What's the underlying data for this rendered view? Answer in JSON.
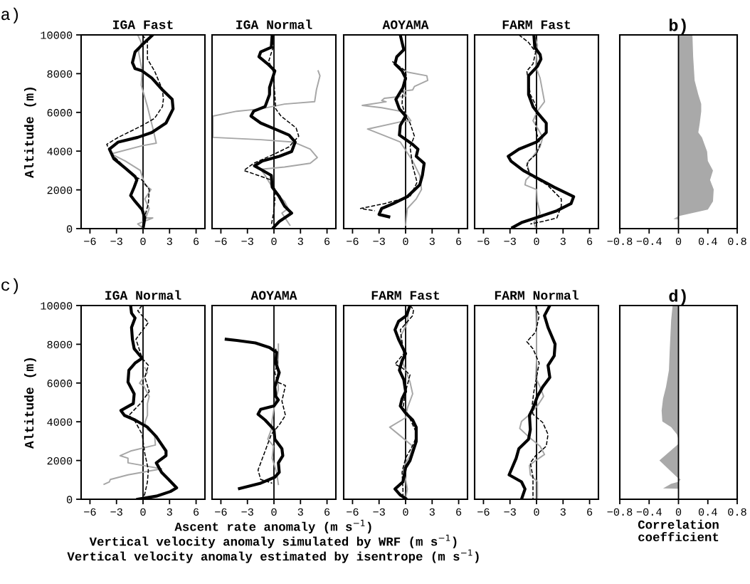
{
  "chart_data": [
    {
      "type": "line",
      "title": "IGA Fast",
      "ylabel": "Altitude (m)",
      "annotations": [
        "a)"
      ],
      "xlim": [
        -7,
        7
      ],
      "xticks": [
        -6,
        -3,
        0,
        3,
        6
      ],
      "ylim": [
        0,
        10000
      ],
      "yticks": [
        0,
        2000,
        4000,
        6000,
        8000,
        10000
      ],
      "ref_lines": [
        {
          "axis": "x",
          "value": 0,
          "color": "#000000"
        }
      ],
      "series": [
        {
          "color": "#a6a6a6",
          "line_style": "solid",
          "x": [
            -0.6,
            -0.2,
            -0.5,
            -0.1,
            -0.2,
            0.5,
            1.1,
            1.5,
            -0.1,
            -3.6,
            -2.0,
            -0.3,
            0.2,
            0.9,
            0.2,
            0.7,
            0.3,
            1.1,
            -0.6,
            -0.1
          ],
          "values": [
            10000,
            9610,
            9120,
            8140,
            7410,
            6300,
            5200,
            4410,
            4280,
            3860,
            3490,
            3000,
            2260,
            2020,
            1530,
            1040,
            550,
            550,
            240,
            60
          ]
        },
        {
          "color": "#000000",
          "line_style": "dashed",
          "x": [
            -0.1,
            0.5,
            0.5,
            1.3,
            2.2,
            2.3,
            2.2,
            1.3,
            -0.1,
            -2.8,
            -4.1,
            -3.6,
            -2.2,
            -1.0,
            -0.1,
            0.7,
            0.6,
            0.3,
            0.05
          ],
          "values": [
            10000,
            9670,
            8750,
            8140,
            7160,
            6670,
            6300,
            5690,
            5320,
            4710,
            4350,
            3860,
            3240,
            2690,
            2510,
            2020,
            1290,
            800,
            60
          ]
        },
        {
          "color": "#000000",
          "line_style": "solid",
          "x": [
            1.1,
            -0.1,
            -0.9,
            -1.2,
            -0.9,
            -0.1,
            1.0,
            2.2,
            3.3,
            3.4,
            2.6,
            1.0,
            -0.6,
            -2.8,
            -3.8,
            -3.3,
            -2.0,
            -0.9,
            -0.7,
            -1.0,
            -1.4,
            -0.9,
            -0.1,
            0.2,
            0.05
          ],
          "values": [
            10000,
            9490,
            9120,
            8570,
            8260,
            8140,
            7770,
            7160,
            6670,
            6180,
            5450,
            4960,
            4710,
            4470,
            4100,
            3610,
            3120,
            2690,
            2510,
            2140,
            1710,
            1410,
            980,
            550,
            120
          ]
        }
      ]
    },
    {
      "type": "line",
      "title": "IGA Normal",
      "tick_labels": "x",
      "xlim": [
        -7,
        7
      ],
      "xticks": [
        -6,
        -3,
        0,
        3,
        6
      ],
      "ylim": [
        0,
        10000
      ],
      "yticks": [
        0,
        2000,
        4000,
        6000,
        8000,
        10000
      ],
      "ref_lines": [
        {
          "axis": "x",
          "value": 0,
          "color": "#000000"
        }
      ],
      "series": [
        {
          "color": "#a6a6a6",
          "line_style": "solid",
          "x": [
            5.0,
            5.2,
            4.8,
            4.6,
            1.2,
            -1.5,
            -4.2,
            -6.9,
            -6.9,
            -1.5,
            2.2,
            4.1,
            4.9,
            4.1,
            1.2,
            -1.5,
            -1.0,
            -0.2,
            0.3,
            1.2,
            1.6,
            0.9,
            1.8
          ],
          "values": [
            8140,
            7890,
            7160,
            6550,
            6430,
            6180,
            6060,
            5810,
            4710,
            4590,
            4470,
            4100,
            3670,
            3370,
            3180,
            3060,
            2750,
            2140,
            1770,
            1410,
            1040,
            800,
            180
          ]
        },
        {
          "color": "#000000",
          "line_style": "dashed",
          "x": [
            -0.2,
            -0.1,
            -0.6,
            -0.1,
            0.1,
            0.2,
            0.8,
            2.5,
            2.8,
            1.7,
            0.1,
            -2.3,
            -3.4,
            -1.8,
            -0.3,
            0.1,
            0.1,
            -0.05,
            -0.3
          ],
          "values": [
            10000,
            9360,
            8630,
            8140,
            6920,
            6180,
            5810,
            5200,
            4770,
            4220,
            3860,
            3370,
            3000,
            2750,
            2510,
            2020,
            1410,
            800,
            180
          ]
        },
        {
          "color": "#000000",
          "line_style": "solid",
          "x": [
            -0.2,
            -0.3,
            -1.5,
            -1.7,
            -0.7,
            0.1,
            -0.5,
            -0.5,
            -1.0,
            -2.3,
            -2.6,
            -1.5,
            0.1,
            1.7,
            2.4,
            2.0,
            0.6,
            -1.3,
            -2.2,
            -1.5,
            -0.3,
            -0.2,
            0.6,
            1.2,
            2.0,
            0.6,
            -0.05
          ],
          "values": [
            10000,
            9360,
            9120,
            8870,
            8500,
            8140,
            7280,
            6920,
            6300,
            6060,
            5810,
            5450,
            5140,
            4830,
            4470,
            3980,
            3730,
            3490,
            3240,
            3060,
            2750,
            2140,
            1650,
            1160,
            800,
            370,
            60
          ]
        }
      ]
    },
    {
      "type": "line",
      "title": "AOYAMA",
      "tick_labels": "x",
      "xlim": [
        -7,
        7
      ],
      "xticks": [
        -6,
        -3,
        0,
        3,
        6
      ],
      "ylim": [
        0,
        10000
      ],
      "yticks": [
        0,
        2000,
        4000,
        6000,
        8000,
        10000
      ],
      "ref_lines": [
        {
          "axis": "x",
          "value": 0,
          "color": "#000000"
        }
      ],
      "series": [
        {
          "color": "#a6a6a6",
          "line_style": "solid",
          "x": [
            0,
            0.2,
            2.4,
            2.5,
            1.0,
            0.8,
            -0.3,
            0,
            -2.4,
            -2.7,
            -2.2,
            -4.9,
            -2.7,
            -0.6,
            0,
            0.6,
            -0.6,
            -4.3,
            -1.9,
            -0.6,
            0.8,
            1.6,
            1.8,
            1.2,
            0.2,
            0
          ],
          "values": [
            8140,
            8080,
            7890,
            7650,
            7340,
            7160,
            7100,
            6850,
            6730,
            6610,
            6550,
            6360,
            6240,
            6060,
            5940,
            5570,
            5510,
            5140,
            4710,
            4470,
            3490,
            2750,
            2020,
            1530,
            1040,
            180
          ]
        },
        {
          "color": "#000000",
          "line_style": "dashed",
          "x": [
            -1.5,
            0,
            0.1,
            -0.3,
            -0.4,
            0,
            0.5,
            1.0,
            0.5,
            0.8,
            1.3,
            0.5,
            -2.4,
            -5.1,
            -3.5
          ],
          "values": [
            8630,
            8140,
            7770,
            7160,
            6430,
            5810,
            5450,
            4770,
            4220,
            3240,
            2390,
            1650,
            1290,
            1040,
            920
          ]
        },
        {
          "color": "#000000",
          "line_style": "solid",
          "x": [
            -0.6,
            -0.4,
            -0.2,
            -1.0,
            -1.2,
            -0.4,
            0,
            -0.3,
            -1.1,
            -0.7,
            0,
            -0.6,
            -0.7,
            0.8,
            1.4,
            1.2,
            2.1,
            1.9,
            1.6,
            0.2,
            -1.4,
            -2.7,
            -3.0,
            -1.9
          ],
          "values": [
            10000,
            9610,
            9240,
            8870,
            8500,
            8140,
            7770,
            7280,
            6670,
            6180,
            5810,
            5320,
            4830,
            4350,
            4100,
            3730,
            3370,
            2750,
            2260,
            1650,
            1290,
            1040,
            730,
            610
          ]
        }
      ]
    },
    {
      "type": "line",
      "title": "FARM Fast",
      "tick_labels": "x",
      "xlim": [
        -7,
        7
      ],
      "xticks": [
        -6,
        -3,
        0,
        3,
        6
      ],
      "ylim": [
        0,
        10000
      ],
      "yticks": [
        0,
        2000,
        4000,
        6000,
        8000,
        10000
      ],
      "ref_lines": [
        {
          "axis": "x",
          "value": 0,
          "color": "#000000"
        }
      ],
      "series": [
        {
          "color": "#a6a6a6",
          "line_style": "solid",
          "x": [
            -0.3,
            0.1,
            -0.1,
            0.4,
            0.9,
            0.1,
            -0.4,
            0.1,
            0.7,
            0.4,
            -0.4,
            -1.1,
            -0.7,
            -1.2,
            -1.3,
            0,
            0.1,
            0.4,
            -0.3,
            -0.1
          ],
          "values": [
            10000,
            9490,
            8380,
            7770,
            6550,
            6060,
            5570,
            5200,
            4710,
            4220,
            3730,
            3370,
            2750,
            2510,
            2260,
            2020,
            1410,
            800,
            310,
            60
          ]
        },
        {
          "color": "#000000",
          "line_style": "dashed",
          "x": [
            -2.0,
            -0.9,
            -0.1,
            -0.4,
            -1.1,
            -0.9,
            -0.7,
            0,
            -0.1,
            0.4,
            0,
            -0.9,
            -1.1,
            -0.7,
            1.2,
            2.8,
            2.8,
            2.3,
            0.7,
            -0.7
          ],
          "values": [
            10000,
            9610,
            9120,
            8500,
            8140,
            7530,
            6920,
            6300,
            5080,
            4350,
            3860,
            3490,
            3240,
            2750,
            2260,
            1530,
            1160,
            550,
            370,
            240
          ]
        },
        {
          "color": "#000000",
          "line_style": "solid",
          "x": [
            -0.3,
            -0.2,
            0.4,
            0.5,
            0.1,
            -0.9,
            -0.9,
            -0.4,
            0.1,
            1.1,
            1.1,
            0,
            -2.0,
            -3.2,
            -2.9,
            -1.5,
            0,
            2.0,
            4.2,
            3.9,
            2.3,
            -0.1,
            -1.7,
            -2.7
          ],
          "values": [
            10000,
            9360,
            8990,
            8750,
            8380,
            7890,
            6920,
            6300,
            5990,
            5450,
            4960,
            4470,
            4100,
            3730,
            3490,
            3000,
            2630,
            2140,
            1650,
            1290,
            920,
            550,
            310,
            60
          ]
        }
      ]
    },
    {
      "type": "area",
      "title": "b)",
      "orientation": "horizontal",
      "tick_labels": "x",
      "xlim": [
        -0.8,
        0.8
      ],
      "xticks": [
        -0.8,
        -0.4,
        0,
        0.4,
        0.8
      ],
      "ylim": [
        0,
        10000
      ],
      "yticks": [
        0,
        2000,
        4000,
        6000,
        8000,
        10000
      ],
      "ref_lines": [
        {
          "axis": "x",
          "value": 0,
          "color": "#000000"
        }
      ],
      "series": [
        {
          "color": "#a9a9a9",
          "x": [
            10000,
            8870,
            7650,
            6920,
            6430,
            6060,
            5450,
            4960,
            4710,
            3980,
            3490,
            3000,
            2510,
            2020,
            1410,
            980,
            640,
            500,
            480
          ],
          "values": [
            0.19,
            0.2,
            0.22,
            0.27,
            0.31,
            0.31,
            0.29,
            0.27,
            0.32,
            0.39,
            0.4,
            0.47,
            0.43,
            0.48,
            0.47,
            0.4,
            0.0,
            -0.07,
            0.0
          ]
        }
      ]
    },
    {
      "type": "line",
      "title": "IGA Normal",
      "ylabel": "Altitude (m)",
      "annotations": [
        "c)"
      ],
      "xlim": [
        -7,
        7
      ],
      "xticks": [
        -6,
        -3,
        0,
        3,
        6
      ],
      "ylim": [
        0,
        10000
      ],
      "yticks": [
        0,
        2000,
        4000,
        6000,
        8000,
        10000
      ],
      "ref_lines": [
        {
          "axis": "x",
          "value": 0,
          "color": "#000000"
        }
      ],
      "series": [
        {
          "color": "#a6a6a6",
          "line_style": "solid",
          "x": [
            0.2,
            0.5,
            -0.1,
            -0.4,
            0.05,
            0.7,
            0.5,
            0.5,
            0.2,
            0.5,
            1.3,
            1.4,
            -1.4,
            -2.6,
            -1.7,
            -1.7,
            -0.1,
            2.1,
            -1.7,
            -3.7,
            -3.8,
            -4.4
          ],
          "values": [
            6790,
            6540,
            6170,
            5990,
            5870,
            5310,
            4940,
            4330,
            3960,
            3600,
            3350,
            2800,
            2490,
            2250,
            2120,
            1880,
            1750,
            1570,
            1260,
            1020,
            900,
            770
          ]
        },
        {
          "color": "#000000",
          "line_style": "dashed",
          "x": [
            -0.1,
            -0.6,
            0.6,
            -0.8,
            -0.1,
            0.6,
            0.2,
            0.7,
            -0.3,
            -1.6,
            -0.9,
            -0.1,
            0.2,
            0.6,
            0.5,
            0.2,
            0
          ],
          "values": [
            10000,
            9730,
            9120,
            8260,
            7280,
            6910,
            6290,
            5560,
            4940,
            4330,
            4020,
            3350,
            2370,
            1510,
            900,
            280,
            40
          ]
        },
        {
          "color": "#000000",
          "line_style": "solid",
          "x": [
            -1.4,
            -1.3,
            -0.9,
            -1.3,
            -1.2,
            -1.0,
            -0.1,
            -0.9,
            -1.6,
            -1.7,
            -1.0,
            -1.1,
            -2.5,
            -2.1,
            -0.9,
            0.5,
            1.5,
            2.6,
            2.6,
            1.5,
            2.1,
            2.9,
            3.8,
            3.1,
            1.5,
            -0.6
          ],
          "values": [
            10000,
            9610,
            9360,
            8870,
            8260,
            7770,
            7280,
            7030,
            6660,
            6050,
            5440,
            4940,
            4580,
            4330,
            4090,
            3720,
            3230,
            2490,
            2250,
            1880,
            1390,
            1020,
            590,
            400,
            160,
            0
          ]
        }
      ]
    },
    {
      "type": "line",
      "title": "AOYAMA",
      "xlabel": "Ascent rate anomaly (m s$^{−1}$)\nVertical velocity anomaly simulated by WRF (m s$^{−1}$)\nVertical velocity anomaly estimated by isentrope (m s$^{−1}$)",
      "tick_labels": "x",
      "xlim": [
        -7,
        7
      ],
      "xticks": [
        -6,
        -3,
        0,
        3,
        6
      ],
      "ylim": [
        0,
        10000
      ],
      "yticks": [
        0,
        2000,
        4000,
        6000,
        8000,
        10000
      ],
      "ref_lines": [
        {
          "axis": "x",
          "value": 0,
          "color": "#000000"
        }
      ],
      "series": [
        {
          "color": "#a6a6a6",
          "line_style": "solid",
          "x": [
            0.5,
            0.5,
            0.4,
            0.5,
            0.1,
            -0.2,
            -0.3,
            -0.7,
            -0.05,
            -0.2,
            0.3,
            0.5
          ],
          "values": [
            8010,
            7520,
            6420,
            5680,
            4940,
            4090,
            3600,
            3100,
            2740,
            2120,
            1390,
            770
          ]
        },
        {
          "color": "#000000",
          "line_style": "dashed",
          "x": [
            0.2,
            0.4,
            0.1,
            0.4,
            1.3,
            0.9,
            1.3,
            0.6,
            -0.3,
            -1.3,
            -1.8,
            -1.5,
            -0.2
          ],
          "values": [
            7770,
            7030,
            6540,
            6050,
            5870,
            5070,
            4330,
            3840,
            3350,
            2120,
            1510,
            1020,
            830
          ]
        },
        {
          "color": "#000000",
          "line_style": "solid",
          "x": [
            -5.4,
            -4.2,
            -2.1,
            -0.5,
            0.3,
            0.2,
            0.6,
            0.1,
            0.2,
            0.5,
            0,
            -1.5,
            -1.8,
            -1.0,
            0,
            0.1,
            0.9,
            1.0,
            0.5,
            0.6,
            0.1,
            -1.5,
            -3.9
          ],
          "values": [
            8260,
            8200,
            8070,
            7830,
            7580,
            7030,
            6540,
            5800,
            5310,
            5130,
            4820,
            4640,
            4390,
            4090,
            3600,
            3100,
            2610,
            2250,
            1880,
            1390,
            1140,
            830,
            550
          ]
        }
      ]
    },
    {
      "type": "line",
      "title": "FARM Fast",
      "tick_labels": "x",
      "xlim": [
        -7,
        7
      ],
      "xticks": [
        -6,
        -3,
        0,
        3,
        6
      ],
      "ylim": [
        0,
        10000
      ],
      "yticks": [
        0,
        2000,
        4000,
        6000,
        8000,
        10000
      ],
      "ref_lines": [
        {
          "axis": "x",
          "value": 0,
          "color": "#000000"
        }
      ],
      "series": [
        {
          "color": "#a6a6a6",
          "line_style": "solid",
          "x": [
            0.4,
            0.2,
            -0.6,
            -0.2,
            -0.3,
            0.5,
            0.8,
            0.2,
            0,
            -1.8,
            -0.8,
            0.8,
            0.5,
            -0.3,
            0,
            0.2,
            0
          ],
          "values": [
            10000,
            9110,
            8380,
            7520,
            7030,
            6050,
            5440,
            4700,
            4210,
            3720,
            3350,
            2740,
            2250,
            1630,
            1020,
            530,
            40
          ]
        },
        {
          "color": "#000000",
          "line_style": "dashed",
          "x": [
            0.5,
            0.9,
            0.8,
            -0.6,
            -0.2,
            -1.2,
            -0.4,
            0.5,
            0,
            -0.3,
            0.2,
            1.3,
            0.9,
            0,
            -0.4,
            -0.3,
            -0.3
          ],
          "values": [
            10000,
            9790,
            9480,
            8750,
            7520,
            6970,
            6790,
            6420,
            5560,
            4700,
            4450,
            3350,
            2860,
            2120,
            1390,
            530,
            40
          ]
        },
        {
          "color": "#000000",
          "line_style": "solid",
          "x": [
            0.5,
            0.1,
            -0.8,
            -1.2,
            -0.8,
            0,
            -0.4,
            -0.7,
            -0.2,
            0,
            -0.4,
            -0.6,
            0,
            0.8,
            1.2,
            1.2,
            0.5,
            0,
            -0.3,
            -1.2,
            -0.6,
            0
          ],
          "values": [
            10000,
            9480,
            9180,
            8750,
            8260,
            7520,
            7150,
            6660,
            6170,
            5560,
            5190,
            4820,
            4450,
            4090,
            3720,
            2980,
            2000,
            1630,
            900,
            530,
            220,
            40
          ]
        }
      ]
    },
    {
      "type": "line",
      "title": "FARM Normal",
      "tick_labels": "x",
      "xlim": [
        -7,
        7
      ],
      "xticks": [
        -6,
        -3,
        0,
        3,
        6
      ],
      "ylim": [
        0,
        10000
      ],
      "yticks": [
        0,
        2000,
        4000,
        6000,
        8000,
        10000
      ],
      "ref_lines": [
        {
          "axis": "x",
          "value": 0,
          "color": "#000000"
        }
      ],
      "series": [
        {
          "color": "#a6a6a6",
          "line_style": "solid",
          "x": [
            -0.1,
            0,
            0,
            -0.1,
            0.4,
            0.8,
            0.1,
            -0.9,
            -1.7,
            -1.9,
            -0.9,
            0.4,
            0.9,
            -0.1,
            -0.8,
            -0.7,
            0.1,
            0.1
          ],
          "values": [
            10000,
            8750,
            7150,
            6290,
            5800,
            5310,
            4820,
            4330,
            4020,
            3660,
            3230,
            2740,
            2310,
            2000,
            1750,
            1260,
            900,
            40
          ]
        },
        {
          "color": "#000000",
          "line_style": "dashed",
          "x": [
            -0.1,
            0.3,
            -0.1,
            -1.1,
            -0.4,
            0.3,
            0,
            -0.3,
            -0.5,
            -0.4,
            0.7,
            1.3,
            1.1,
            -0.1,
            -0.7,
            -0.4,
            -0.4
          ],
          "values": [
            10000,
            9480,
            8630,
            8130,
            7770,
            7030,
            6290,
            5560,
            4820,
            4390,
            3960,
            3350,
            2740,
            2250,
            1880,
            1140,
            40
          ]
        },
        {
          "color": "#000000",
          "line_style": "solid",
          "x": [
            1.5,
            0.9,
            1.3,
            2.1,
            2.0,
            1.3,
            1.5,
            0.7,
            0.1,
            -0.4,
            -0.8,
            -0.7,
            -0.9,
            -2.0,
            -2.3,
            -3.1,
            -1.7,
            -1.3,
            -1.7
          ],
          "values": [
            10000,
            9480,
            8870,
            8010,
            7400,
            6910,
            6290,
            5800,
            5310,
            4700,
            4330,
            3600,
            3100,
            2610,
            2120,
            1260,
            900,
            530,
            0
          ]
        }
      ]
    },
    {
      "type": "area",
      "title": "d)",
      "xlabel": "Correlation\ncoefficient",
      "orientation": "horizontal",
      "tick_labels": "x",
      "xlim": [
        -0.8,
        0.8
      ],
      "xticks": [
        -0.8,
        -0.4,
        0,
        0.4,
        0.8
      ],
      "ylim": [
        0,
        10000
      ],
      "yticks": [
        0,
        2000,
        4000,
        6000,
        8000,
        10000
      ],
      "ref_lines": [
        {
          "axis": "x",
          "value": 0,
          "color": "#000000"
        }
      ],
      "series": [
        {
          "color": "#a9a9a9",
          "x": [
            10000,
            9240,
            7640,
            6660,
            5800,
            5190,
            4580,
            4020,
            3720,
            3350,
            3100,
            2860,
            2000,
            1140,
            1020,
            900,
            800,
            560,
            540
          ],
          "values": [
            -0.08,
            -0.1,
            -0.12,
            -0.13,
            -0.17,
            -0.21,
            -0.23,
            -0.22,
            -0.1,
            -0.02,
            0.0,
            0.0,
            -0.26,
            -0.02,
            0.03,
            0.0,
            -0.1,
            -0.21,
            0.0
          ]
        }
      ]
    }
  ]
}
